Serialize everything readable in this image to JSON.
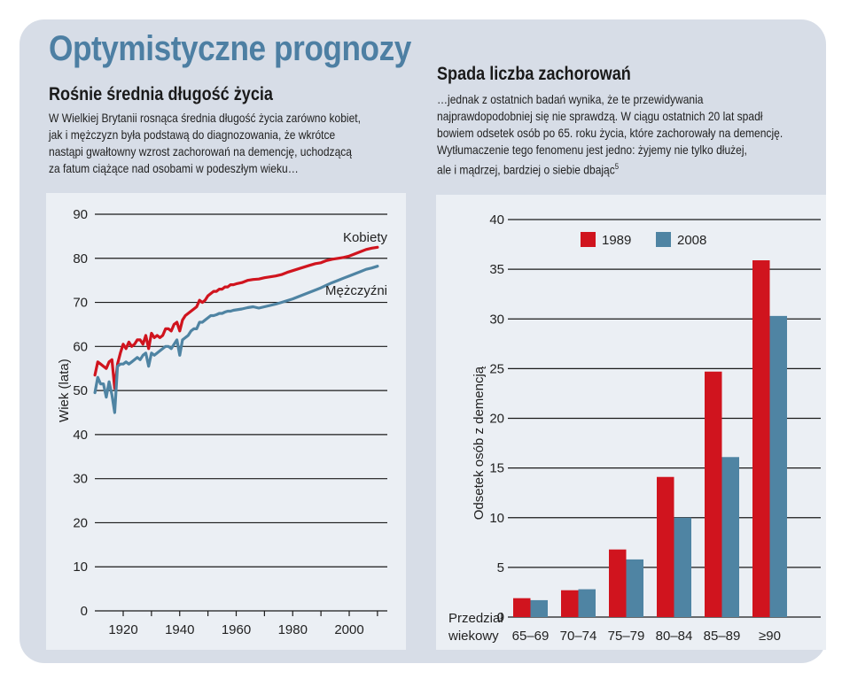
{
  "title": "Optymistyczne prognozy",
  "left": {
    "heading": "Rośnie średnia długość życia",
    "lead": [
      "W Wielkiej Brytanii rosnąca średnia długość życia zarówno kobiet,",
      "jak i mężczyzn była podstawą do diagnozowania, że wkrótce",
      "nastąpi gwałtowny wzrost zachorowań na demencję, uchodzącą",
      "za fatum ciążące nad osobami w podeszłym wieku…"
    ]
  },
  "right": {
    "heading": "Spada liczba zachorowań",
    "lead": [
      "…jednak z ostatnich badań wynika, że te przewidywania",
      "najprawdopodobniej się nie sprawdzą. W ciągu ostatnich 20 lat spadł",
      "bowiem odsetek osób po 65. roku życia, które zachorowały na demencję.",
      "Wytłumaczenie tego fenomenu jest jedno: żyjemy nie tylko dłużej,",
      "ale i mądrzej, bardziej o siebie dbając"
    ],
    "footnote": "5"
  },
  "colors": {
    "title": "#4d7fa3",
    "women": "#d0141e",
    "men": "#4f84a3",
    "bar1989": "#d0141e",
    "bar2008": "#4f84a3",
    "frame": "#d7dde7",
    "panel": "#ebeff4"
  },
  "chart_data": [
    {
      "type": "line",
      "title": "Rośnie średnia długość życia",
      "xlabel": "",
      "ylabel": "Wiek (lata)",
      "xlim": [
        1910,
        2010
      ],
      "ylim": [
        0,
        90
      ],
      "yticks": [
        0,
        10,
        20,
        30,
        40,
        50,
        60,
        70,
        80,
        90
      ],
      "xticks": [
        1920,
        1930,
        1940,
        1950,
        1960,
        1970,
        1980,
        1990,
        2000,
        2010
      ],
      "xticklabels": [
        "1920",
        "1940",
        "1960",
        "1980",
        "2000"
      ],
      "xticklabel_values": [
        1920,
        1940,
        1960,
        1980,
        2000
      ],
      "grid": true,
      "series": [
        {
          "name": "Kobiety",
          "color": "#d0141e",
          "x": [
            1910,
            1911,
            1912,
            1913,
            1914,
            1915,
            1916,
            1917,
            1918,
            1919,
            1920,
            1921,
            1922,
            1923,
            1924,
            1925,
            1926,
            1927,
            1928,
            1929,
            1930,
            1931,
            1932,
            1933,
            1934,
            1935,
            1936,
            1937,
            1938,
            1939,
            1940,
            1941,
            1942,
            1943,
            1944,
            1945,
            1946,
            1947,
            1948,
            1949,
            1950,
            1951,
            1952,
            1953,
            1954,
            1955,
            1956,
            1957,
            1958,
            1959,
            1960,
            1962,
            1964,
            1966,
            1968,
            1970,
            1972,
            1974,
            1976,
            1978,
            1980,
            1982,
            1984,
            1986,
            1988,
            1990,
            1992,
            1994,
            1996,
            1998,
            2000,
            2002,
            2004,
            2006,
            2008,
            2010
          ],
          "values": [
            53.5,
            56.5,
            56.0,
            55.5,
            55.0,
            56.5,
            57.0,
            50.5,
            56.0,
            58.5,
            60.5,
            59.5,
            61.0,
            60.0,
            60.5,
            61.5,
            61.5,
            60.5,
            62.5,
            59.5,
            63.0,
            62.0,
            62.5,
            62.0,
            62.5,
            64.0,
            64.0,
            63.5,
            65.0,
            65.5,
            63.5,
            66.0,
            67.0,
            67.5,
            68.0,
            68.5,
            69.0,
            70.5,
            70.0,
            70.5,
            71.5,
            72.0,
            72.5,
            72.5,
            73.0,
            73.0,
            73.5,
            73.5,
            74.0,
            74.0,
            74.2,
            74.5,
            75.0,
            75.2,
            75.3,
            75.6,
            75.8,
            76.0,
            76.3,
            76.8,
            77.2,
            77.6,
            78.0,
            78.4,
            78.8,
            79.0,
            79.5,
            79.8,
            80.0,
            80.2,
            80.5,
            81.0,
            81.5,
            82.0,
            82.3,
            82.5
          ]
        },
        {
          "name": "Mężczyźni",
          "color": "#4f84a3",
          "x": [
            1910,
            1911,
            1912,
            1913,
            1914,
            1915,
            1916,
            1917,
            1918,
            1919,
            1920,
            1921,
            1922,
            1923,
            1924,
            1925,
            1926,
            1927,
            1928,
            1929,
            1930,
            1931,
            1932,
            1933,
            1934,
            1935,
            1936,
            1937,
            1938,
            1939,
            1940,
            1941,
            1942,
            1943,
            1944,
            1945,
            1946,
            1947,
            1948,
            1949,
            1950,
            1951,
            1952,
            1953,
            1954,
            1955,
            1956,
            1957,
            1958,
            1959,
            1960,
            1962,
            1964,
            1966,
            1968,
            1970,
            1972,
            1974,
            1976,
            1978,
            1980,
            1982,
            1984,
            1986,
            1988,
            1990,
            1992,
            1994,
            1996,
            1998,
            2000,
            2002,
            2004,
            2006,
            2008,
            2010
          ],
          "values": [
            49.5,
            53.0,
            51.5,
            51.5,
            48.5,
            52.0,
            49.0,
            45.0,
            55.5,
            56.0,
            56.0,
            56.5,
            56.0,
            56.5,
            57.0,
            57.5,
            57.0,
            58.0,
            58.5,
            55.5,
            58.5,
            58.0,
            58.5,
            59.0,
            59.5,
            60.0,
            60.0,
            59.5,
            60.5,
            61.5,
            58.0,
            61.5,
            62.0,
            62.5,
            63.5,
            64.0,
            64.0,
            65.5,
            65.5,
            66.0,
            66.5,
            67.0,
            67.0,
            67.2,
            67.5,
            67.5,
            67.8,
            68.0,
            68.0,
            68.2,
            68.3,
            68.5,
            68.8,
            69.0,
            68.7,
            69.0,
            69.3,
            69.6,
            70.0,
            70.4,
            70.8,
            71.3,
            71.8,
            72.3,
            72.8,
            73.3,
            73.9,
            74.5,
            75.0,
            75.5,
            76.0,
            76.5,
            77.0,
            77.5,
            77.8,
            78.2
          ]
        }
      ]
    },
    {
      "type": "bar",
      "title": "Spada liczba zachorowań",
      "xlabel": "Przedział wiekowy",
      "xlabel_lines": [
        "Przedział",
        "wiekowy"
      ],
      "ylabel": "Odsetek osób z demencją",
      "ylim": [
        0,
        40
      ],
      "yticks": [
        0,
        5,
        10,
        15,
        20,
        25,
        30,
        35,
        40
      ],
      "grid": true,
      "legend": "top-center",
      "categories": [
        "65–69",
        "70–74",
        "75–79",
        "80–84",
        "85–89",
        "≥90"
      ],
      "series": [
        {
          "name": "1989",
          "color": "#d0141e",
          "values": [
            1.9,
            2.7,
            6.8,
            14.1,
            24.7,
            35.9
          ]
        },
        {
          "name": "2008",
          "color": "#4f84a3",
          "values": [
            1.7,
            2.8,
            5.8,
            10.0,
            16.1,
            30.3
          ]
        }
      ]
    }
  ]
}
